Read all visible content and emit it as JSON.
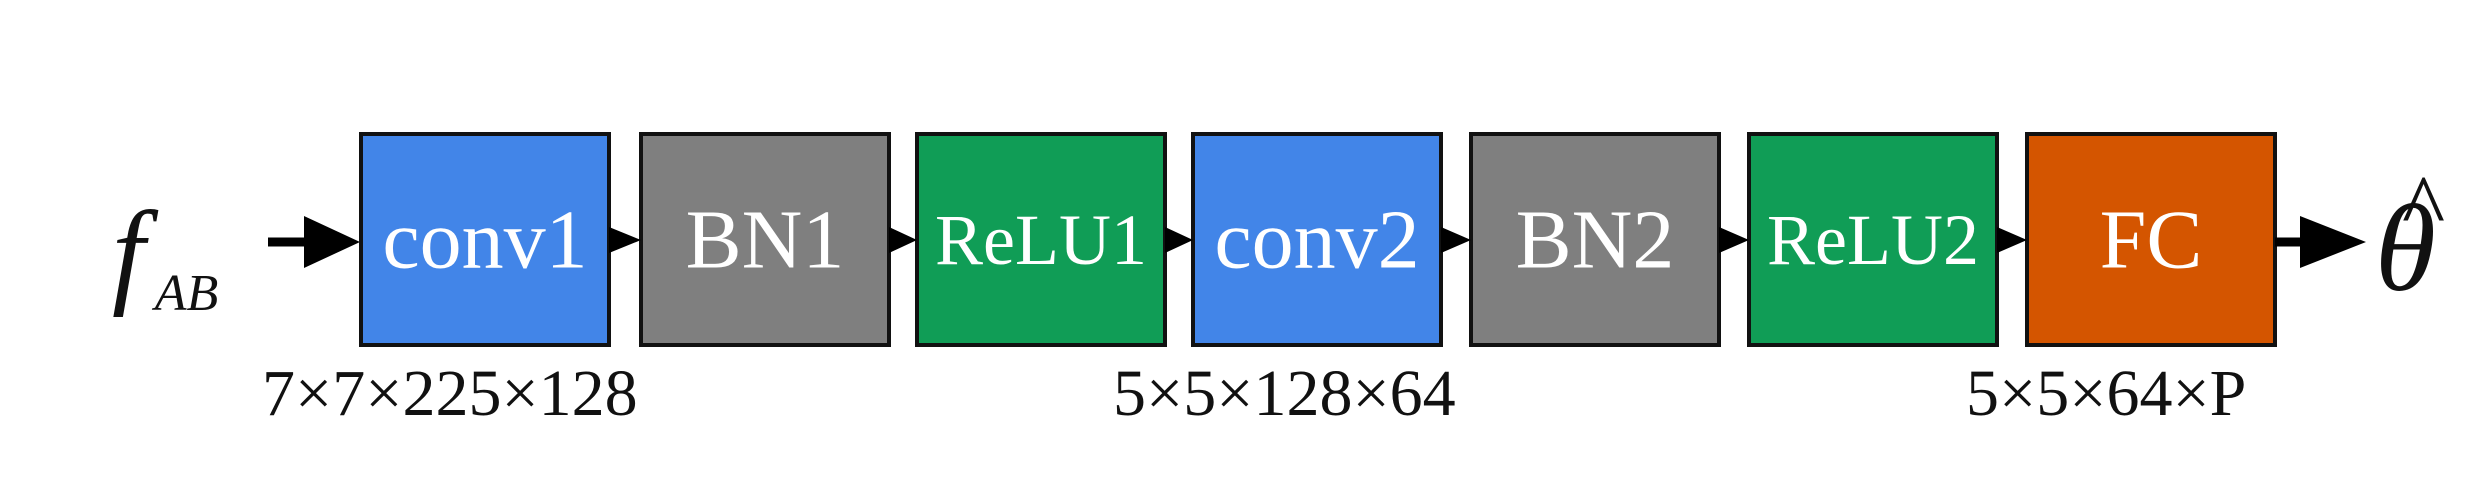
{
  "input": {
    "symbol": "f",
    "subscript": "AB"
  },
  "output": {
    "symbol": "θ",
    "accent": "^"
  },
  "blocks": [
    {
      "label": "conv1",
      "color": "#4285e8"
    },
    {
      "label": "BN1",
      "color": "#7f7f7f"
    },
    {
      "label": "ReLU1",
      "color": "#109d56"
    },
    {
      "label": "conv2",
      "color": "#4285e8"
    },
    {
      "label": "BN2",
      "color": "#7f7f7f"
    },
    {
      "label": "ReLU2",
      "color": "#109d56"
    },
    {
      "label": "FC",
      "color": "#d45500"
    }
  ],
  "dimensions": [
    {
      "text": "7×7×225×128"
    },
    {
      "text": "5×5×128×64"
    },
    {
      "text": "5×5×64×P"
    }
  ]
}
